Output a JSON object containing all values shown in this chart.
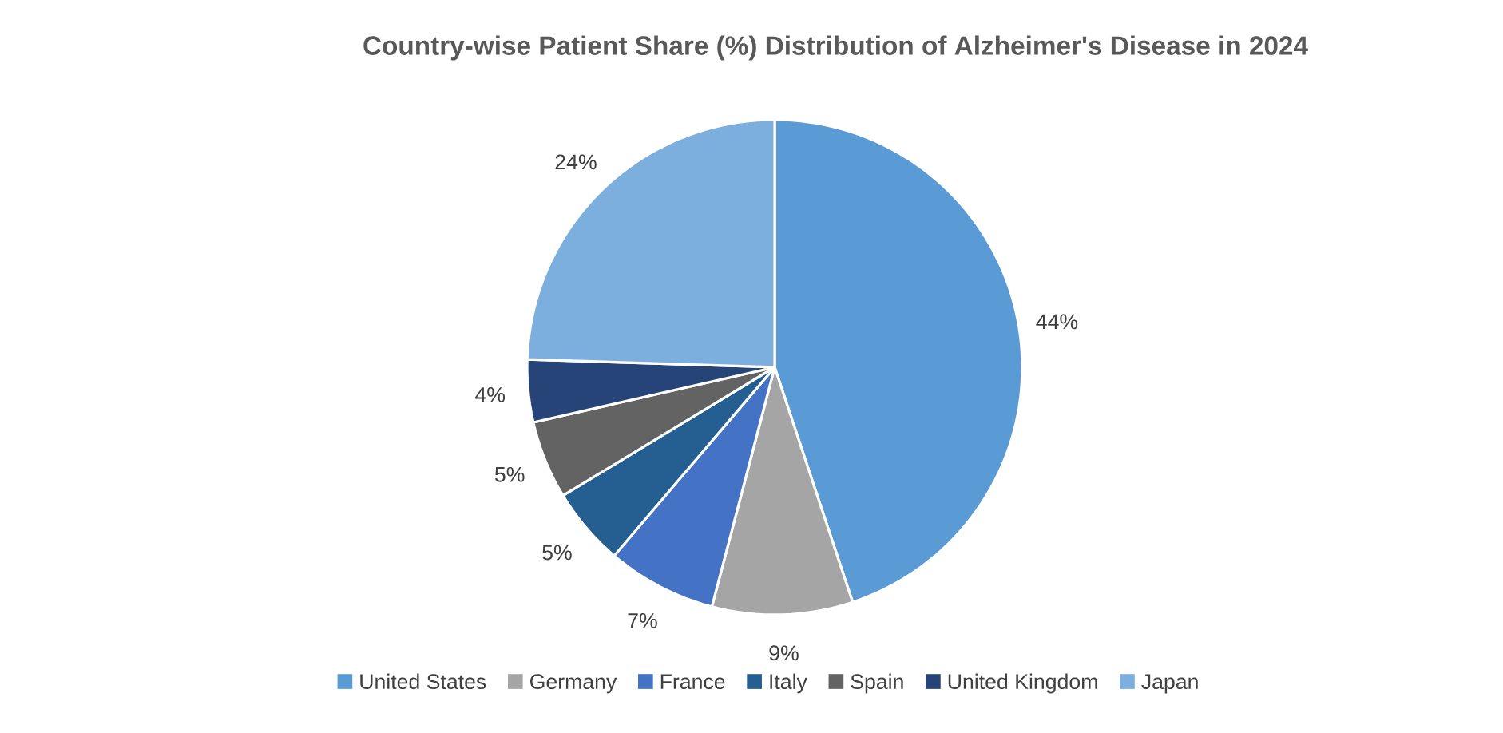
{
  "chart_data": {
    "type": "pie",
    "title": "Country-wise Patient Share (%) Distribution of Alzheimer's Disease in 2024",
    "categories": [
      "United States",
      "Germany",
      "France",
      "Italy",
      "Spain",
      "United Kingdom",
      "Japan"
    ],
    "values": [
      44,
      9,
      7,
      5,
      5,
      4,
      24
    ],
    "value_labels": [
      "44%",
      "9%",
      "7%",
      "5%",
      "5%",
      "4%",
      "24%"
    ],
    "colors": [
      "#5b9bd5",
      "#a5a5a5",
      "#4472c4",
      "#255e91",
      "#636363",
      "#264478",
      "#7cafdd"
    ],
    "legend": "bottom"
  }
}
